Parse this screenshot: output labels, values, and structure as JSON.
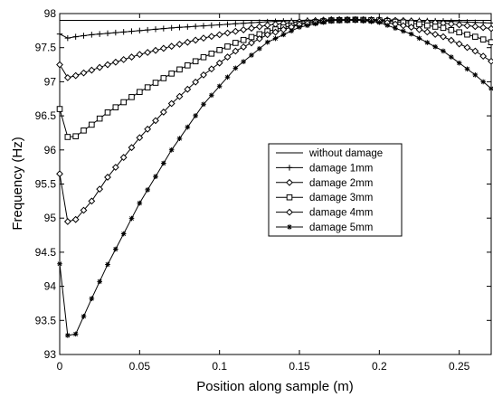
{
  "chart_data": {
    "type": "line",
    "title": "",
    "xlabel": "Position along sample (m)",
    "ylabel": "Frequency (Hz)",
    "xlim": [
      0,
      0.27
    ],
    "ylim": [
      93,
      98
    ],
    "xticks": [
      0,
      0.05,
      0.1,
      0.15,
      0.2,
      0.25
    ],
    "xtick_labels": [
      "0",
      "0.05",
      "0.1",
      "0.15",
      "0.2",
      "0.25"
    ],
    "yticks": [
      93,
      93.5,
      94,
      94.5,
      95,
      95.5,
      96,
      96.5,
      97,
      97.5,
      98
    ],
    "ytick_labels": [
      "93",
      "93.5",
      "94",
      "94.5",
      "95",
      "95.5",
      "96",
      "96.5",
      "97",
      "97.5",
      "98"
    ],
    "grid": false,
    "legend_position": "center-right",
    "series": [
      {
        "name": "without damage",
        "marker": "none",
        "x": [
          0,
          0.27
        ],
        "y": [
          97.9,
          97.9
        ]
      },
      {
        "name": "damage 1mm",
        "marker": "plus",
        "x": [
          0,
          0.005,
          0.01,
          0.02,
          0.03,
          0.05,
          0.07,
          0.09,
          0.11,
          0.13,
          0.15,
          0.17,
          0.185,
          0.2,
          0.22,
          0.24,
          0.26,
          0.27
        ],
        "y": [
          97.7,
          97.64,
          97.66,
          97.69,
          97.71,
          97.75,
          97.79,
          97.82,
          97.85,
          97.88,
          97.9,
          97.91,
          97.91,
          97.91,
          97.9,
          97.89,
          97.87,
          97.86
        ]
      },
      {
        "name": "damage 2mm",
        "marker": "diamond-open",
        "x": [
          0,
          0.005,
          0.01,
          0.02,
          0.03,
          0.05,
          0.07,
          0.09,
          0.11,
          0.13,
          0.15,
          0.17,
          0.185,
          0.2,
          0.22,
          0.24,
          0.26,
          0.27
        ],
        "y": [
          97.25,
          97.06,
          97.09,
          97.17,
          97.25,
          97.4,
          97.52,
          97.64,
          97.74,
          97.83,
          97.88,
          97.91,
          97.91,
          97.91,
          97.89,
          97.86,
          97.81,
          97.78
        ]
      },
      {
        "name": "damage 3mm",
        "marker": "square",
        "x": [
          0,
          0.005,
          0.01,
          0.02,
          0.03,
          0.05,
          0.07,
          0.09,
          0.11,
          0.13,
          0.15,
          0.17,
          0.185,
          0.2,
          0.22,
          0.24,
          0.26,
          0.27
        ],
        "y": [
          96.6,
          96.19,
          96.2,
          96.37,
          96.55,
          96.85,
          97.12,
          97.36,
          97.57,
          97.74,
          97.85,
          97.9,
          97.91,
          97.9,
          97.86,
          97.79,
          97.66,
          97.58
        ]
      },
      {
        "name": "damage 4mm",
        "marker": "diamond",
        "x": [
          0,
          0.005,
          0.01,
          0.02,
          0.03,
          0.05,
          0.07,
          0.09,
          0.11,
          0.13,
          0.15,
          0.17,
          0.185,
          0.2,
          0.22,
          0.24,
          0.26,
          0.27
        ],
        "y": [
          95.65,
          94.95,
          94.98,
          95.25,
          95.6,
          96.18,
          96.68,
          97.1,
          97.45,
          97.69,
          97.84,
          97.9,
          97.91,
          97.89,
          97.8,
          97.66,
          97.45,
          97.3
        ]
      },
      {
        "name": "damage 5mm",
        "marker": "star",
        "x": [
          0,
          0.005,
          0.01,
          0.02,
          0.03,
          0.05,
          0.07,
          0.09,
          0.11,
          0.13,
          0.15,
          0.17,
          0.185,
          0.2,
          0.22,
          0.24,
          0.26,
          0.27
        ],
        "y": [
          94.33,
          93.28,
          93.3,
          93.82,
          94.32,
          95.22,
          96.0,
          96.67,
          97.2,
          97.58,
          97.8,
          97.9,
          97.91,
          97.87,
          97.7,
          97.45,
          97.1,
          96.9
        ]
      }
    ]
  }
}
